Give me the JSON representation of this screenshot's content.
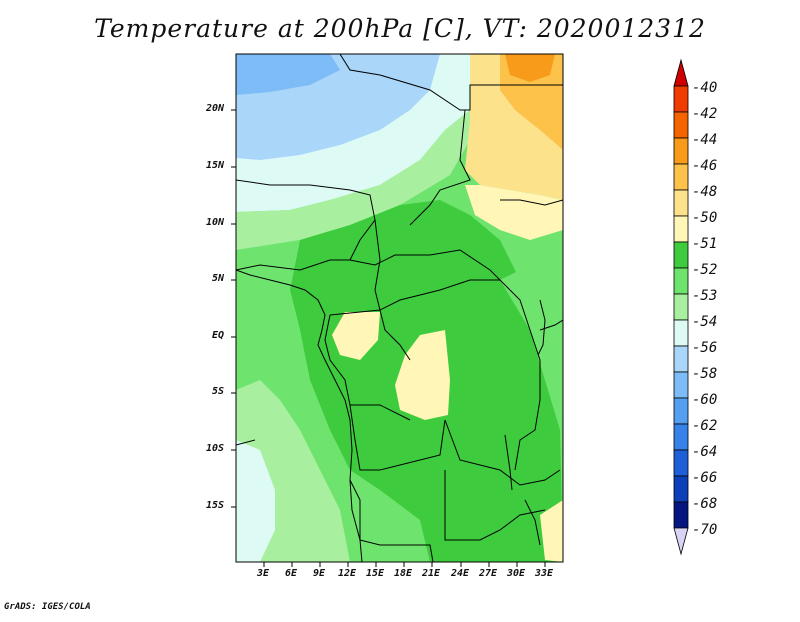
{
  "title": "Temperature at 200hPa [C], VT: 2020012312",
  "credit": "GrADS: IGES/COLA",
  "lat_labels": [
    "20N",
    "15N",
    "10N",
    "5N",
    "EQ",
    "5S",
    "10S",
    "15S"
  ],
  "lon_labels": [
    "3E",
    "6E",
    "9E",
    "12E",
    "15E",
    "18E",
    "21E",
    "24E",
    "27E",
    "30E",
    "33E"
  ],
  "legend": {
    "labels": [
      "-40",
      "-42",
      "-44",
      "-46",
      "-48",
      "-50",
      "-51",
      "-52",
      "-53",
      "-54",
      "-56",
      "-58",
      "-60",
      "-62",
      "-64",
      "-66",
      "-68",
      "-70"
    ],
    "colors": [
      "#d00000",
      "#f03c00",
      "#f66400",
      "#f89a1a",
      "#fcc24a",
      "#fde28c",
      "#fff6b8",
      "#3ecb3e",
      "#6ee46e",
      "#a8f0a0",
      "#ddfbf4",
      "#aad6fa",
      "#7ebcf7",
      "#559ff0",
      "#3682e8",
      "#1d60d8",
      "#0d3fb8",
      "#051680",
      "#d8d4f4"
    ]
  },
  "map_colors": {
    "light_blue": "#aad6fa",
    "mid_blue": "#7ebcf7",
    "cyan_white": "#ddfbf4",
    "light_green": "#a8f0a0",
    "green": "#6ee46e",
    "dark_green": "#3ecb3e",
    "pale_yellow": "#fff6b8",
    "yellow": "#fde28c",
    "orange": "#fcc24a",
    "dark_orange": "#f89a1a"
  }
}
